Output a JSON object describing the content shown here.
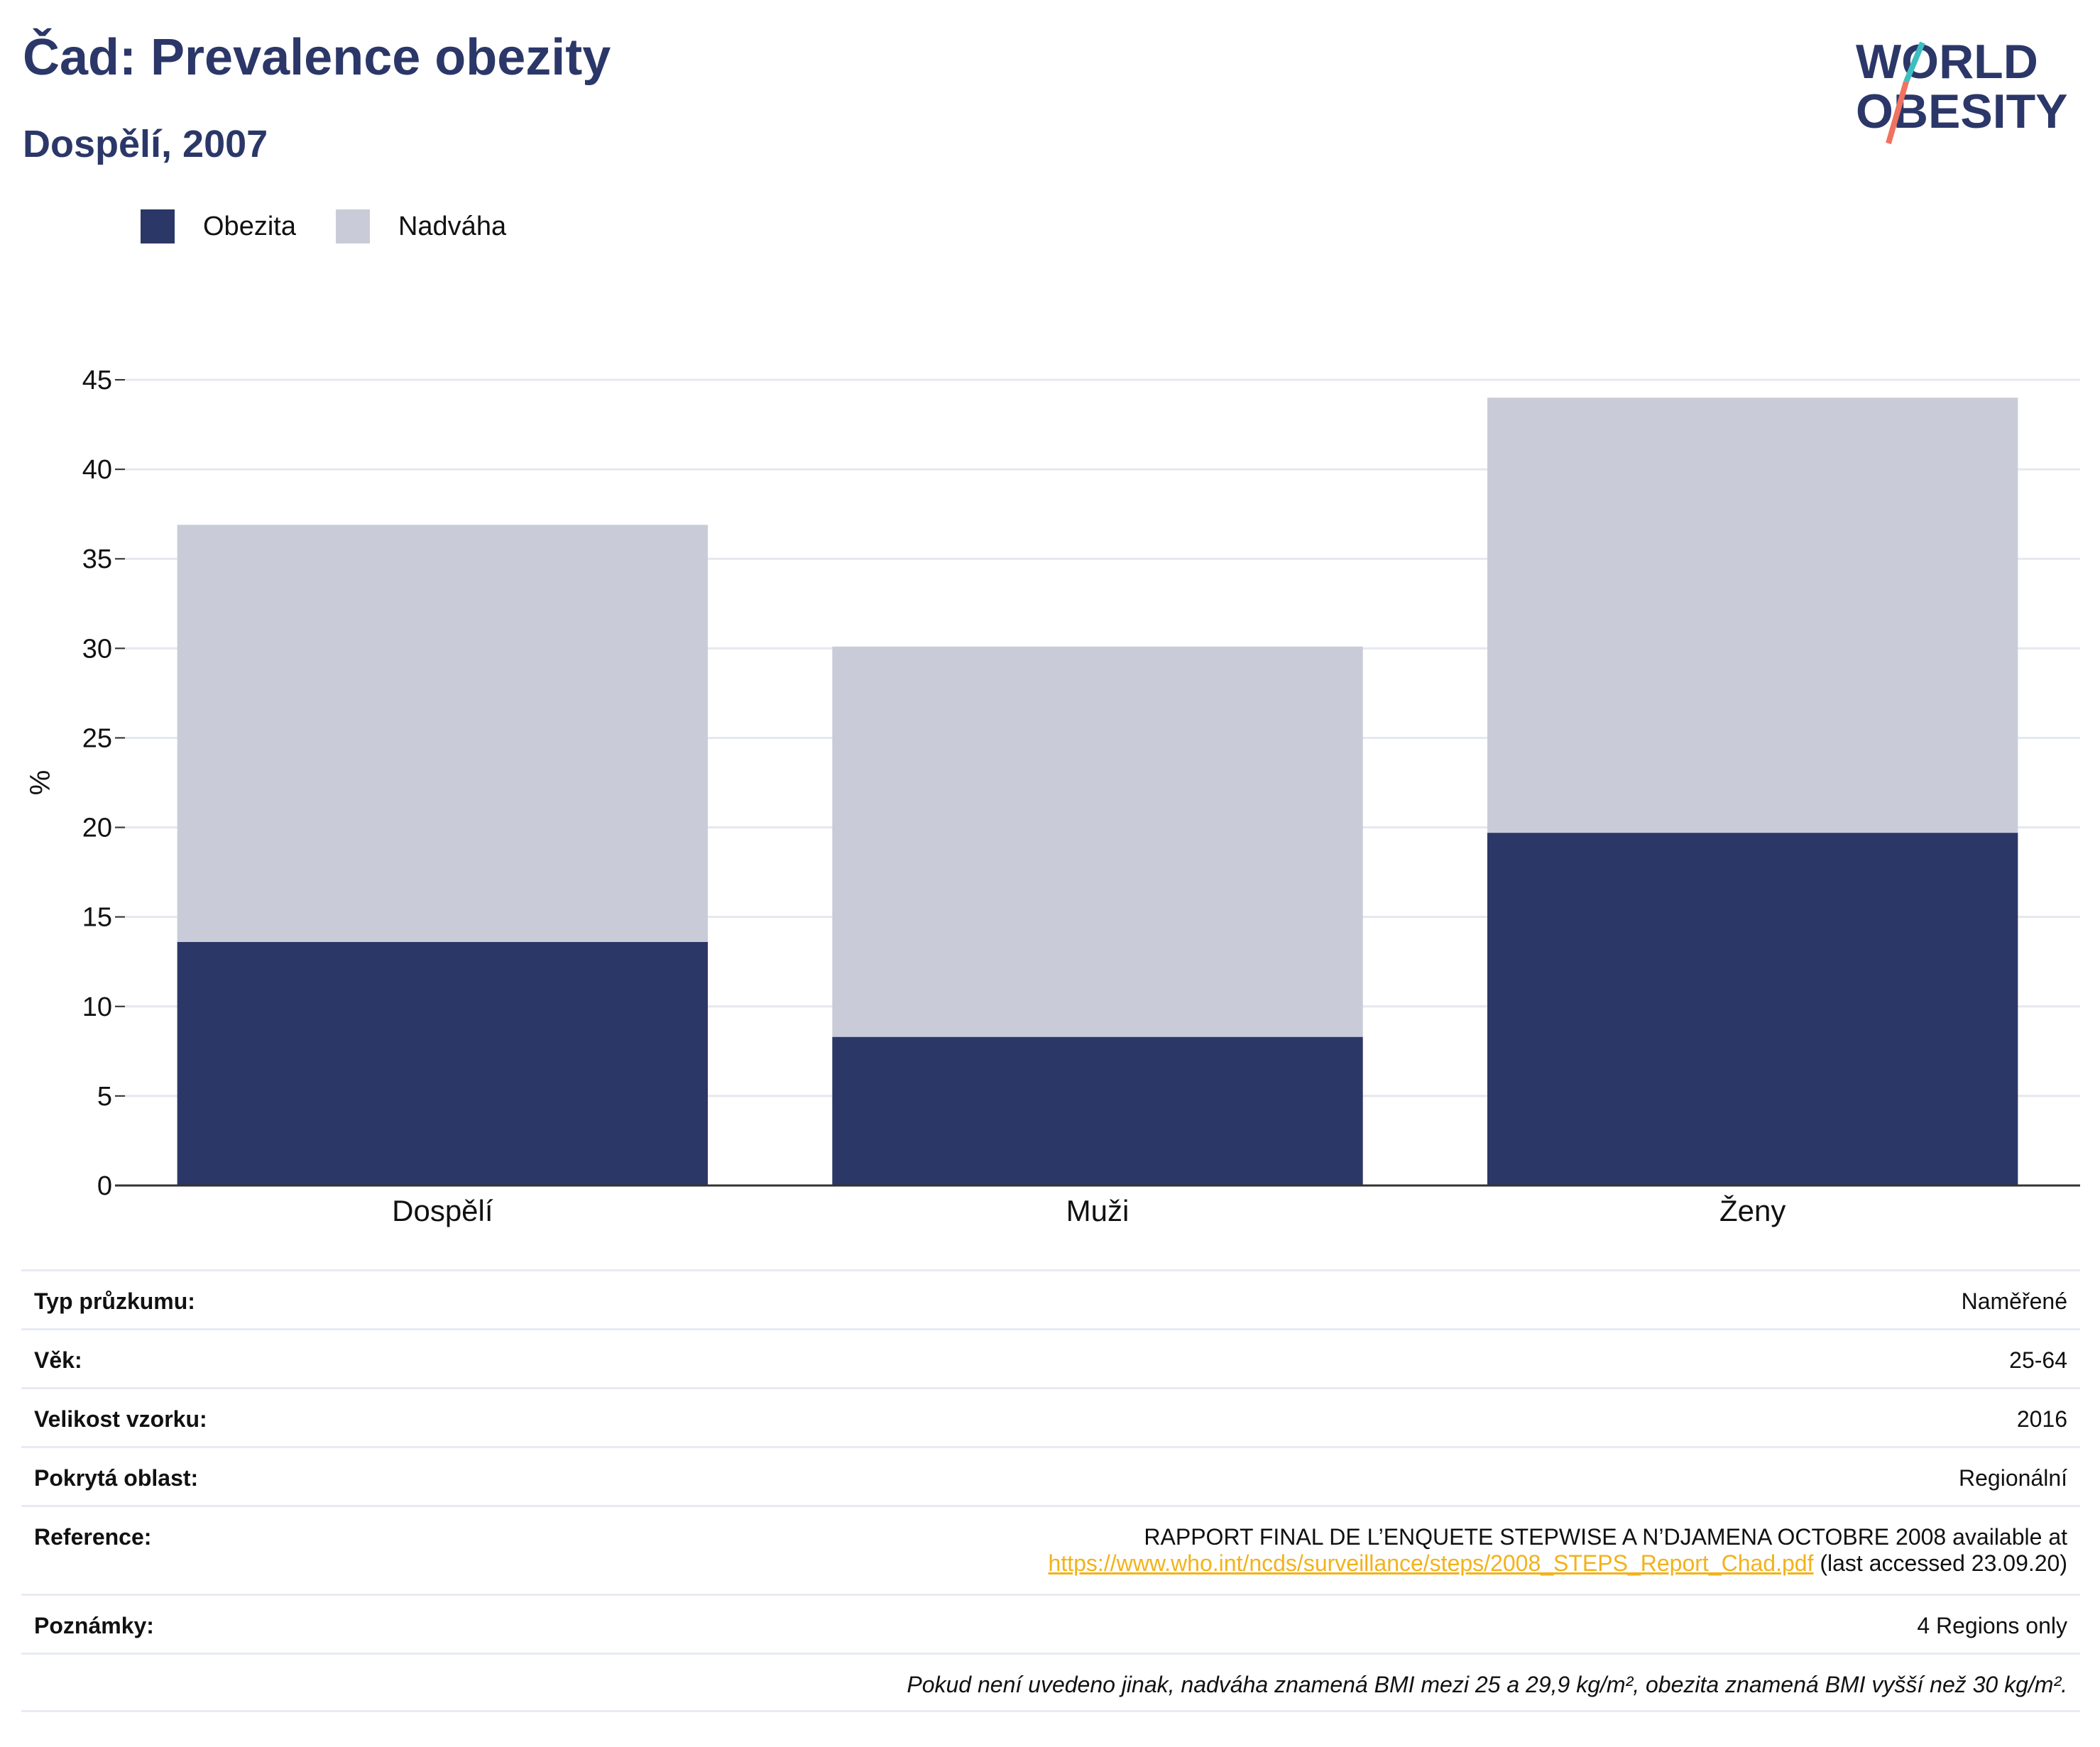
{
  "header": {
    "title": "Čad: Prevalence obezity",
    "subtitle": "Dospělí, 2007",
    "logo_line1": "WORLD",
    "logo_line2": "OBESITY"
  },
  "colors": {
    "obesity": "#2b3766",
    "overweight": "#c9ccd8",
    "title": "#2b3768",
    "logo_accent_teal": "#3dbfbf",
    "logo_accent_coral": "#f07260",
    "link": "#f2b21a"
  },
  "chart_data": {
    "type": "bar",
    "stacked": true,
    "categories": [
      "Dospělí",
      "Muži",
      "Ženy"
    ],
    "series": [
      {
        "name": "Obezita",
        "values": [
          13.6,
          8.3,
          19.7
        ]
      },
      {
        "name": "Nadváha",
        "values": [
          23.3,
          21.8,
          24.3
        ]
      }
    ],
    "ylabel": "%",
    "ylim": [
      0,
      45
    ],
    "yticks": [
      0,
      5,
      10,
      15,
      20,
      25,
      30,
      35,
      40,
      45
    ],
    "grid": true,
    "legend": "top-left"
  },
  "info": {
    "survey_type": {
      "label": "Typ průzkumu:",
      "value": "Naměřené"
    },
    "age": {
      "label": "Věk:",
      "value": "25-64"
    },
    "sample_size": {
      "label": "Velikost vzorku:",
      "value": "2016"
    },
    "coverage": {
      "label": "Pokrytá oblast:",
      "value": "Regionální"
    },
    "reference": {
      "label": "Reference:",
      "line1": "RAPPORT FINAL DE L’ENQUETE STEPWISE A N’DJAMENA OCTOBRE 2008 available at",
      "link": "https://www.who.int/ncds/surveillance/steps/2008_STEPS_Report_Chad.pdf",
      "suffix": " (last accessed 23.09.20)"
    },
    "notes": {
      "label": "Poznámky:",
      "value": "4 Regions only"
    },
    "footnote": "Pokud není uvedeno jinak, nadváha znamená BMI mezi 25 a 29,9 kg/m², obezita znamená BMI vyšší než 30 kg/m²."
  }
}
